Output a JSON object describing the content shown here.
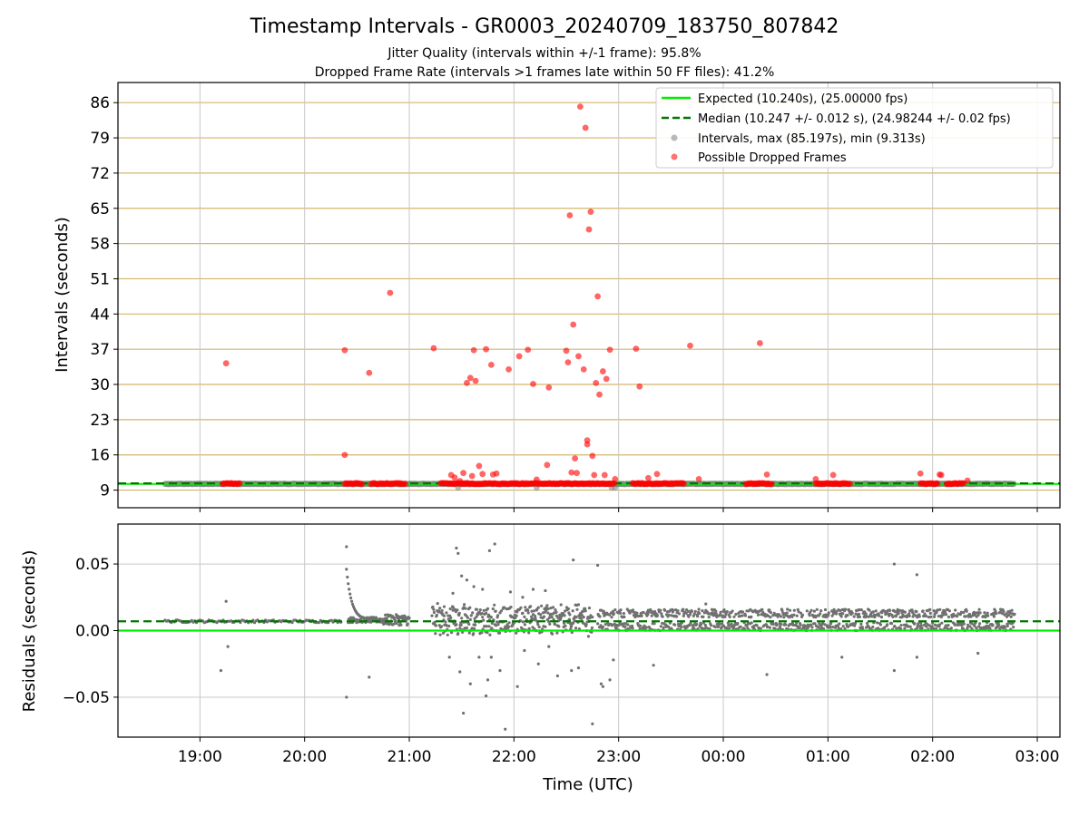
{
  "figure": {
    "title": "Timestamp Intervals - GR0003_20240709_183750_807842",
    "subtitle_1": "Jitter Quality (intervals within +/-1 frame): 95.8%",
    "subtitle_2": "Dropped Frame Rate (intervals >1 frames late within 50 FF files): 41.2%"
  },
  "colors": {
    "expected": "#00ee00",
    "median": "#007700",
    "intervals": "#808080",
    "dropped": "#ff0000",
    "hgrid_top": "#d4b56a",
    "vgrid": "#c8c8c8"
  },
  "chart_data": [
    {
      "type": "scatter",
      "name": "intervals",
      "ylabel": "Intervals (seconds)",
      "xlim": [
        "18:13",
        "03:13"
      ],
      "ylim": [
        5.5,
        90
      ],
      "yticks": [
        "86",
        "79",
        "72",
        "65",
        "58",
        "51",
        "44",
        "37",
        "30",
        "23",
        "16",
        "9"
      ],
      "grid": true,
      "legend_position": "top-right",
      "legend": [
        "Expected (10.240s), (25.00000 fps)",
        "Median (10.247 +/- 0.012 s), (24.98244 +/- 0.02 fps)",
        "Intervals, max (85.197s), min (9.313s)",
        "Possible Dropped Frames"
      ],
      "expected": 10.24,
      "median": 10.247,
      "intervals_range": {
        "start": "18:40",
        "end": "02:47",
        "value": 10.24
      },
      "dropped_clusters": [
        {
          "start": "19:13",
          "end": "19:23"
        },
        {
          "start": "20:23",
          "end": "20:33"
        },
        {
          "start": "20:38",
          "end": "20:58"
        },
        {
          "start": "21:18",
          "end": "22:58"
        },
        {
          "start": "23:08",
          "end": "23:38"
        },
        {
          "start": "00:13",
          "end": "00:28"
        },
        {
          "start": "00:53",
          "end": "01:13"
        },
        {
          "start": "01:53",
          "end": "02:03"
        },
        {
          "start": "02:08",
          "end": "02:18"
        }
      ],
      "dropped_points": [
        [
          "19:15",
          34.2
        ],
        [
          "20:23",
          36.8
        ],
        [
          "20:23",
          16.0
        ],
        [
          "20:37",
          32.3
        ],
        [
          "20:49",
          48.2
        ],
        [
          "21:14",
          37.2
        ],
        [
          "21:24",
          12.0
        ],
        [
          "21:26",
          11.5
        ],
        [
          "21:29",
          10.8
        ],
        [
          "21:31",
          12.4
        ],
        [
          "21:33",
          30.3
        ],
        [
          "21:35",
          31.3
        ],
        [
          "21:36",
          11.8
        ],
        [
          "21:37",
          36.8
        ],
        [
          "21:38",
          30.7
        ],
        [
          "21:40",
          13.8
        ],
        [
          "21:42",
          12.2
        ],
        [
          "21:44",
          37.0
        ],
        [
          "21:47",
          33.9
        ],
        [
          "21:48",
          12.1
        ],
        [
          "21:50",
          12.3
        ],
        [
          "21:57",
          33.0
        ],
        [
          "22:03",
          35.6
        ],
        [
          "22:08",
          36.9
        ],
        [
          "22:11",
          30.1
        ],
        [
          "22:13",
          11.1
        ],
        [
          "22:19",
          14.0
        ],
        [
          "22:20",
          29.4
        ],
        [
          "22:30",
          36.7
        ],
        [
          "22:31",
          34.4
        ],
        [
          "22:32",
          63.6
        ],
        [
          "22:33",
          12.5
        ],
        [
          "22:34",
          41.9
        ],
        [
          "22:35",
          15.3
        ],
        [
          "22:36",
          12.4
        ],
        [
          "22:37",
          35.6
        ],
        [
          "22:38",
          85.2
        ],
        [
          "22:40",
          33.0
        ],
        [
          "22:41",
          81.0
        ],
        [
          "22:42",
          18.9
        ],
        [
          "22:42",
          18.1
        ],
        [
          "22:43",
          60.8
        ],
        [
          "22:44",
          64.3
        ],
        [
          "22:45",
          15.8
        ],
        [
          "22:46",
          12.0
        ],
        [
          "22:47",
          30.3
        ],
        [
          "22:48",
          47.5
        ],
        [
          "22:49",
          28.0
        ],
        [
          "22:51",
          32.6
        ],
        [
          "22:52",
          12.0
        ],
        [
          "22:53",
          31.1
        ],
        [
          "22:55",
          36.9
        ],
        [
          "22:58",
          11.2
        ],
        [
          "23:10",
          37.1
        ],
        [
          "23:12",
          29.6
        ],
        [
          "23:17",
          11.4
        ],
        [
          "23:22",
          12.2
        ],
        [
          "23:41",
          37.7
        ],
        [
          "23:46",
          11.2
        ],
        [
          "00:21",
          38.2
        ],
        [
          "00:25",
          12.1
        ],
        [
          "00:53",
          11.2
        ],
        [
          "01:03",
          12.0
        ],
        [
          "01:53",
          12.3
        ],
        [
          "02:04",
          12.1
        ],
        [
          "02:05",
          12.0
        ],
        [
          "02:20",
          10.9
        ]
      ]
    },
    {
      "type": "scatter",
      "name": "residuals",
      "xlabel": "Time (UTC)",
      "ylabel": "Residuals (seconds)",
      "xlim": [
        "18:13",
        "03:13"
      ],
      "ylim": [
        -0.08,
        0.08
      ],
      "yticks": [
        "0.05",
        "0.00",
        "−0.05"
      ],
      "xticks": [
        "19:00",
        "20:00",
        "21:00",
        "22:00",
        "23:00",
        "00:00",
        "01:00",
        "02:00",
        "03:00"
      ],
      "grid": true,
      "expected": 0.0,
      "median": 0.007,
      "segments": [
        {
          "start": "18:40",
          "end": "20:21",
          "center": 0.007,
          "spread": 0.001
        },
        {
          "start": "20:25",
          "end": "20:45",
          "center": 0.008,
          "spread": 0.002
        },
        {
          "start": "20:45",
          "end": "21:00",
          "center": 0.008,
          "spread": 0.004
        },
        {
          "start": "21:13",
          "end": "22:45",
          "center": 0.005,
          "spread": 0.014
        },
        {
          "start": "22:48",
          "end": "02:47",
          "center": 0.008,
          "spread": 0.008
        }
      ],
      "outliers": [
        [
          "19:12",
          -0.03
        ],
        [
          "19:15",
          0.022
        ],
        [
          "19:16",
          -0.012
        ],
        [
          "20:24",
          0.063
        ],
        [
          "20:24",
          -0.05
        ],
        [
          "20:37",
          -0.035
        ],
        [
          "21:20",
          0.018
        ],
        [
          "21:23",
          -0.02
        ],
        [
          "21:25",
          0.028
        ],
        [
          "21:27",
          0.062
        ],
        [
          "21:28",
          0.058
        ],
        [
          "21:29",
          -0.031
        ],
        [
          "21:30",
          0.041
        ],
        [
          "21:31",
          -0.062
        ],
        [
          "21:33",
          0.038
        ],
        [
          "21:35",
          -0.04
        ],
        [
          "21:37",
          0.033
        ],
        [
          "21:40",
          -0.02
        ],
        [
          "21:42",
          0.031
        ],
        [
          "21:44",
          -0.049
        ],
        [
          "21:45",
          -0.037
        ],
        [
          "21:46",
          0.06
        ],
        [
          "21:47",
          -0.02
        ],
        [
          "21:49",
          0.065
        ],
        [
          "21:52",
          -0.03
        ],
        [
          "21:55",
          -0.074
        ],
        [
          "21:58",
          0.029
        ],
        [
          "22:02",
          -0.042
        ],
        [
          "22:05",
          0.025
        ],
        [
          "22:06",
          -0.015
        ],
        [
          "22:11",
          0.031
        ],
        [
          "22:14",
          -0.025
        ],
        [
          "22:18",
          0.03
        ],
        [
          "22:20",
          -0.012
        ],
        [
          "22:25",
          -0.034
        ],
        [
          "22:33",
          -0.03
        ],
        [
          "22:34",
          0.053
        ],
        [
          "22:37",
          -0.028
        ],
        [
          "22:45",
          -0.07
        ],
        [
          "22:48",
          0.049
        ],
        [
          "22:50",
          -0.04
        ],
        [
          "22:51",
          -0.042
        ],
        [
          "22:55",
          -0.037
        ],
        [
          "22:57",
          -0.022
        ],
        [
          "23:20",
          -0.026
        ],
        [
          "23:50",
          0.02
        ],
        [
          "00:25",
          -0.033
        ],
        [
          "01:08",
          -0.02
        ],
        [
          "01:38",
          0.05
        ],
        [
          "01:38",
          -0.03
        ],
        [
          "01:51",
          0.042
        ],
        [
          "01:51",
          -0.02
        ],
        [
          "02:26",
          -0.017
        ]
      ]
    }
  ]
}
